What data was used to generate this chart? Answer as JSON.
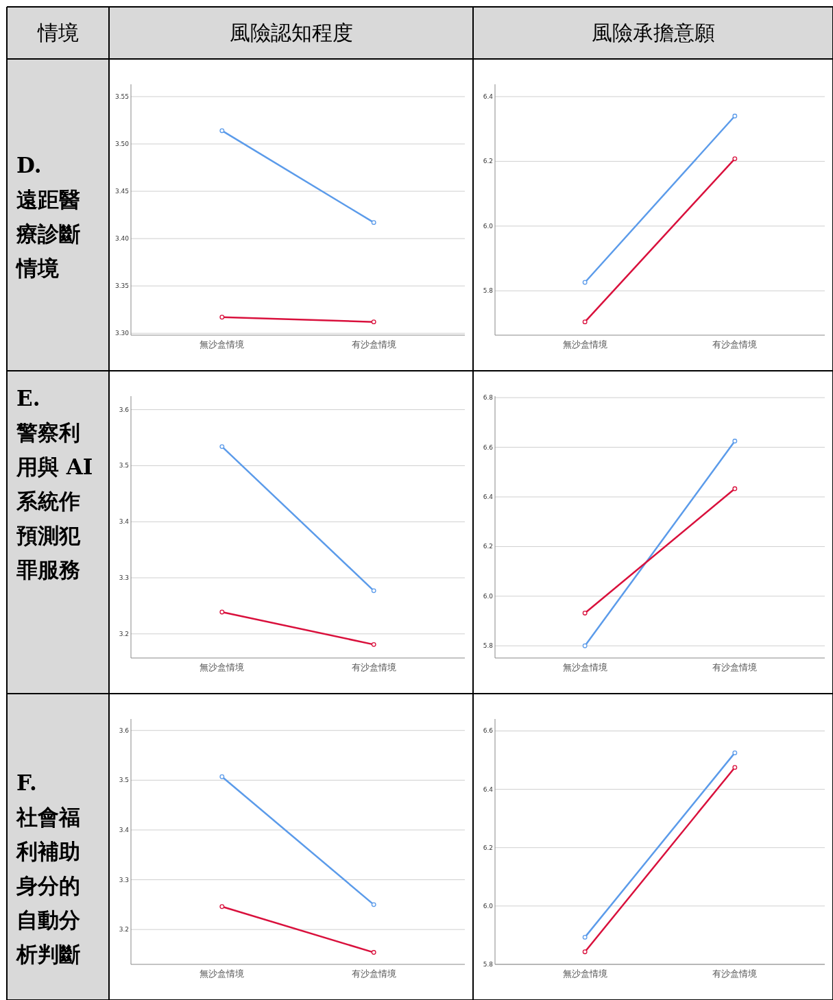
{
  "chart_data": [
    {
      "type": "other",
      "annotations": [
        "情境",
        "風險認知程度",
        "風險承擔意願",
        "D.",
        "遠距醫療診斷情境",
        "E.",
        "警察利用與 AI 系統作預測犯罪服務",
        "F.",
        "社會福利補助身分的自動分析判斷"
      ]
    },
    {
      "type": "line",
      "categories": [
        "無沙盒情境",
        "有沙盒情境"
      ],
      "series": [
        {
          "color": "#5b9bea",
          "values": [
            3.514,
            3.417
          ]
        },
        {
          "color": "#d9103c",
          "values": [
            3.317,
            3.312
          ]
        }
      ],
      "ylim": [
        3.298,
        3.563
      ],
      "yticks": [
        {
          "value": 3.3,
          "label": "3.30"
        },
        {
          "value": 3.35,
          "label": "3.35"
        },
        {
          "value": 3.4,
          "label": "3.40"
        },
        {
          "value": 3.45,
          "label": "3.45"
        },
        {
          "value": 3.5,
          "label": "3.50"
        },
        {
          "value": 3.55,
          "label": "3.55"
        }
      ],
      "grid": "y",
      "marker": "circle"
    },
    {
      "type": "line",
      "categories": [
        "無沙盒情境",
        "有沙盒情境"
      ],
      "series": [
        {
          "color": "#5b9bea",
          "values": [
            5.826,
            6.34
          ]
        },
        {
          "color": "#d9103c",
          "values": [
            5.704,
            6.208
          ]
        }
      ],
      "ylim": [
        5.663,
        6.438
      ],
      "yticks": [
        5.8,
        {
          "value": 6.0,
          "label": "6.0"
        },
        6.2,
        6.4
      ],
      "grid": "y",
      "marker": "circle"
    },
    {
      "type": "line",
      "categories": [
        "無沙盒情境",
        "有沙盒情境"
      ],
      "series": [
        {
          "color": "#5b9bea",
          "values": [
            3.534,
            3.277
          ]
        },
        {
          "color": "#d9103c",
          "values": [
            3.239,
            3.181
          ]
        }
      ],
      "ylim": [
        3.157,
        3.624
      ],
      "yticks": [
        3.2,
        3.3,
        3.4,
        3.5,
        3.6
      ],
      "grid": "y",
      "marker": "circle"
    },
    {
      "type": "line",
      "categories": [
        "無沙盒情境",
        "有沙盒情境"
      ],
      "series": [
        {
          "color": "#5b9bea",
          "values": [
            5.8,
            6.625
          ]
        },
        {
          "color": "#d9103c",
          "values": [
            5.932,
            6.433
          ]
        }
      ],
      "ylim": [
        5.751,
        6.806
      ],
      "yticks": [
        5.8,
        {
          "value": 6.0,
          "label": "6.0"
        },
        6.2,
        6.4,
        6.6,
        6.8
      ],
      "grid": "y",
      "marker": "circle"
    },
    {
      "type": "line",
      "categories": [
        "無沙盒情境",
        "有沙盒情境"
      ],
      "series": [
        {
          "color": "#5b9bea",
          "values": [
            3.507,
            3.25
          ]
        },
        {
          "color": "#d9103c",
          "values": [
            3.246,
            3.154
          ]
        }
      ],
      "ylim": [
        3.13,
        3.623
      ],
      "yticks": [
        3.2,
        3.3,
        3.4,
        3.5,
        3.6
      ],
      "grid": "y",
      "marker": "circle"
    },
    {
      "type": "line",
      "categories": [
        "無沙盒情境",
        "有沙盒情境"
      ],
      "series": [
        {
          "color": "#5b9bea",
          "values": [
            5.893,
            6.525
          ]
        },
        {
          "color": "#d9103c",
          "values": [
            5.843,
            6.475
          ]
        }
      ],
      "ylim": [
        5.8,
        6.641
      ],
      "yticks": [
        5.8,
        {
          "value": 6.0,
          "label": "6.0"
        },
        6.2,
        6.4,
        6.6
      ],
      "grid": "y",
      "marker": "circle"
    }
  ]
}
